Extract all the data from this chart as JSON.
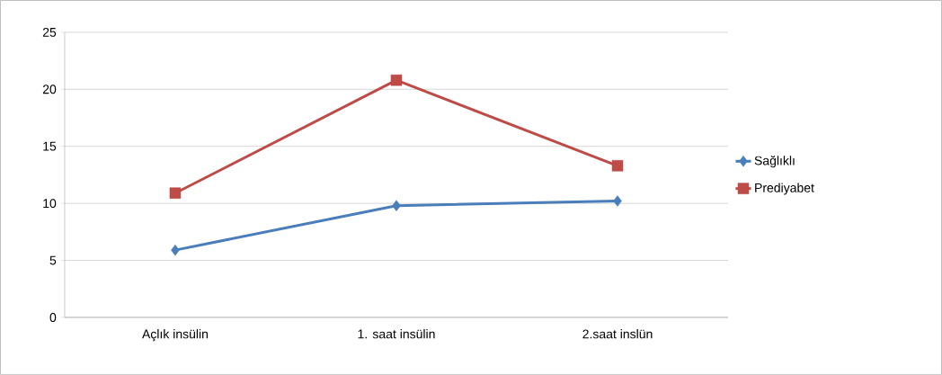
{
  "chart_data": {
    "type": "line",
    "categories": [
      "Açlık insülin",
      "1. saat insülin",
      "2.saat inslün"
    ],
    "series": [
      {
        "name": "Sağlıklı",
        "color": "#4a7ebb",
        "marker": "diamond",
        "values": [
          5.9,
          9.8,
          10.2
        ]
      },
      {
        "name": "Prediyabet",
        "color": "#be4b48",
        "marker": "square",
        "values": [
          10.9,
          20.8,
          13.3
        ]
      }
    ],
    "ylim": [
      0,
      25
    ],
    "yticks": [
      0,
      5,
      10,
      15,
      20,
      25
    ],
    "grid": "y",
    "legend": "right",
    "line_style": "solid"
  }
}
